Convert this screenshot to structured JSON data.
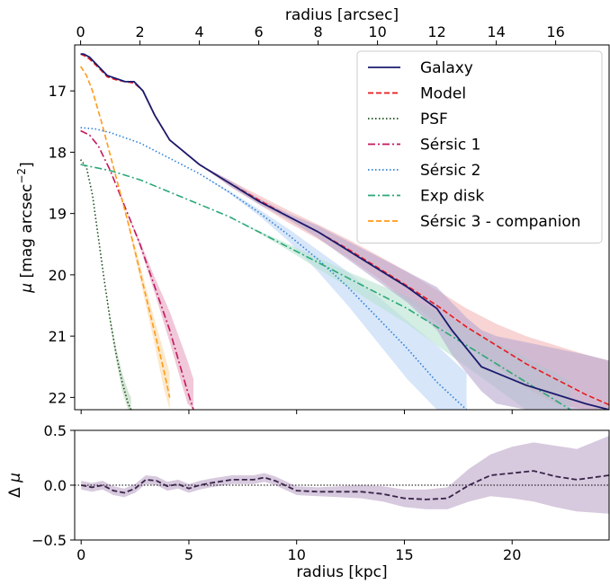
{
  "chart_data": [
    {
      "type": "line",
      "title": "",
      "xlabel": "radius [arcsec]",
      "xlabel_bottom": "radius [kpc]",
      "ylabel": "μ [mag arcsec⁻²]",
      "xlim_arcsec": [
        -0.2,
        17.8
      ],
      "xlim_kpc": [
        -0.3,
        24.5
      ],
      "ylim": [
        22.2,
        16.25
      ],
      "y_inverted": true,
      "top_ticks": [
        "0",
        "2",
        "4",
        "6",
        "8",
        "10",
        "12",
        "14",
        "16"
      ],
      "top_tick_values": [
        0,
        2,
        4,
        6,
        8,
        10,
        12,
        14,
        16
      ],
      "left_ticks": [
        "17",
        "18",
        "19",
        "20",
        "21",
        "22"
      ],
      "left_tick_values": [
        17,
        18,
        19,
        20,
        21,
        22
      ],
      "legend_position": "top-right",
      "series": [
        {
          "name": "Galaxy",
          "color": "#1b1b6e",
          "style": "solid",
          "x": [
            0,
            0.1,
            0.3,
            0.6,
            0.9,
            1.2,
            1.5,
            1.8,
            2.1,
            2.5,
            3.0,
            3.5,
            4.0,
            5.0,
            6.0,
            7.0,
            8.0,
            9.0,
            10.0,
            11.0,
            12.0,
            12.5,
            13.0,
            13.5,
            14.0,
            15.0,
            16.0,
            17.0,
            17.8
          ],
          "y": [
            16.4,
            16.4,
            16.45,
            16.6,
            16.75,
            16.8,
            16.85,
            16.85,
            17.0,
            17.4,
            17.8,
            18.0,
            18.2,
            18.5,
            18.8,
            19.05,
            19.3,
            19.6,
            19.9,
            20.2,
            20.55,
            20.9,
            21.2,
            21.5,
            21.6,
            21.8,
            21.95,
            22.1,
            22.2
          ],
          "band_lo": [
            16.4,
            16.4,
            16.45,
            16.6,
            16.75,
            16.8,
            16.85,
            16.85,
            17.0,
            17.4,
            17.8,
            18.0,
            18.2,
            18.45,
            18.75,
            19.0,
            19.2,
            19.45,
            19.7,
            19.95,
            20.2,
            20.45,
            20.7,
            20.9,
            21.0,
            21.1,
            21.2,
            21.3,
            21.4
          ],
          "band_hi": [
            16.4,
            16.4,
            16.45,
            16.6,
            16.75,
            16.8,
            16.85,
            16.85,
            17.0,
            17.4,
            17.8,
            18.0,
            18.2,
            18.55,
            18.85,
            19.1,
            19.4,
            19.75,
            20.1,
            20.45,
            20.9,
            21.3,
            21.6,
            21.9,
            22.1,
            22.2,
            22.2,
            22.2,
            22.2
          ],
          "band_color": "#b8a8cf"
        },
        {
          "name": "Model",
          "color": "#e8191c",
          "style": "dashed",
          "x": [
            0,
            0.1,
            0.3,
            0.6,
            0.9,
            1.2,
            1.5,
            1.8,
            2.1,
            2.5,
            3.0,
            3.5,
            4.0,
            5.0,
            6.0,
            7.0,
            8.0,
            9.0,
            10.0,
            11.0,
            12.0,
            13.0,
            14.0,
            15.0,
            16.0,
            17.0,
            17.8
          ],
          "y": [
            16.4,
            16.42,
            16.48,
            16.62,
            16.77,
            16.82,
            16.85,
            16.87,
            17.0,
            17.4,
            17.8,
            18.0,
            18.2,
            18.5,
            18.78,
            19.05,
            19.3,
            19.58,
            19.88,
            20.18,
            20.5,
            20.85,
            21.15,
            21.45,
            21.7,
            21.95,
            22.12
          ],
          "band_lo": [
            16.4,
            16.42,
            16.48,
            16.62,
            16.77,
            16.82,
            16.85,
            16.87,
            17.0,
            17.4,
            17.8,
            18.0,
            18.2,
            18.45,
            18.7,
            18.95,
            19.18,
            19.42,
            19.68,
            19.95,
            20.25,
            20.55,
            20.8,
            21.0,
            21.15,
            21.3,
            21.4
          ],
          "band_hi": [
            16.4,
            16.42,
            16.48,
            16.62,
            16.77,
            16.82,
            16.85,
            16.87,
            17.0,
            17.4,
            17.8,
            18.0,
            18.2,
            18.55,
            18.85,
            19.15,
            19.42,
            19.72,
            20.05,
            20.42,
            20.78,
            21.15,
            21.5,
            21.85,
            22.1,
            22.2,
            22.2
          ],
          "band_color": "#f4b8b8"
        },
        {
          "name": "PSF",
          "color": "#1a4d1a",
          "style": "dotted",
          "x": [
            0,
            0.2,
            0.4,
            0.6,
            0.8,
            1.0,
            1.2,
            1.4,
            1.6,
            1.7
          ],
          "y": [
            18.12,
            18.25,
            18.7,
            19.4,
            20.1,
            20.75,
            21.3,
            21.75,
            22.1,
            22.2
          ],
          "band_lo": [
            18.12,
            18.25,
            18.7,
            19.4,
            20.1,
            20.7,
            21.2,
            21.6,
            21.9,
            22.0
          ],
          "band_hi": [
            18.12,
            18.25,
            18.7,
            19.4,
            20.1,
            20.8,
            21.4,
            21.9,
            22.2,
            22.2
          ],
          "band_color": "#b9d3b9"
        },
        {
          "name": "Sérsic 1",
          "color": "#c2185b",
          "style": "dashdot",
          "x": [
            0,
            0.3,
            0.6,
            1.0,
            1.5,
            2.0,
            2.5,
            3.0,
            3.3,
            3.6,
            3.8
          ],
          "y": [
            17.65,
            17.72,
            17.9,
            18.3,
            18.9,
            19.5,
            20.2,
            20.9,
            21.4,
            21.9,
            22.2
          ],
          "band_lo": [
            17.65,
            17.72,
            17.9,
            18.3,
            18.9,
            19.45,
            20.05,
            20.6,
            21.0,
            21.4,
            21.7
          ],
          "band_hi": [
            17.65,
            17.72,
            17.9,
            18.3,
            18.9,
            19.55,
            20.3,
            21.1,
            21.6,
            22.1,
            22.2
          ],
          "band_color": "#e6a4bf"
        },
        {
          "name": "Sérsic 2",
          "color": "#2f7fd8",
          "style": "dotted",
          "x": [
            0,
            0.5,
            1.0,
            2.0,
            3.0,
            4.0,
            5.0,
            6.0,
            7.0,
            8.0,
            9.0,
            10.0,
            11.0,
            12.0,
            13.0
          ],
          "y": [
            17.6,
            17.62,
            17.68,
            17.85,
            18.1,
            18.35,
            18.65,
            18.98,
            19.35,
            19.75,
            20.2,
            20.7,
            21.2,
            21.75,
            22.2
          ],
          "band_lo": [
            17.6,
            17.62,
            17.68,
            17.85,
            18.1,
            18.35,
            18.63,
            18.93,
            19.25,
            19.6,
            19.95,
            20.35,
            20.75,
            21.15,
            21.6
          ],
          "band_hi": [
            17.6,
            17.62,
            17.68,
            17.85,
            18.1,
            18.35,
            18.67,
            19.03,
            19.45,
            19.95,
            20.5,
            21.1,
            21.7,
            22.2,
            22.2
          ],
          "band_color": "#bcd6f5"
        },
        {
          "name": "Exp disk",
          "color": "#2aa876",
          "style": "dashdot",
          "x": [
            0,
            1.0,
            2.0,
            3.0,
            4.0,
            5.0,
            6.0,
            7.0,
            8.0,
            9.0,
            10.0,
            11.0,
            12.0,
            13.0,
            14.0,
            15.0,
            16.0,
            16.5
          ],
          "y": [
            18.2,
            18.3,
            18.45,
            18.65,
            18.85,
            19.05,
            19.3,
            19.55,
            19.8,
            20.05,
            20.3,
            20.55,
            20.85,
            21.15,
            21.45,
            21.75,
            22.05,
            22.2
          ],
          "band_lo": [
            18.2,
            18.3,
            18.45,
            18.65,
            18.85,
            19.05,
            19.28,
            19.5,
            19.72,
            19.95,
            20.15,
            20.35,
            20.6,
            20.85,
            21.1,
            21.35,
            21.6,
            21.75
          ],
          "band_hi": [
            18.2,
            18.3,
            18.45,
            18.65,
            18.85,
            19.05,
            19.32,
            19.6,
            19.9,
            20.2,
            20.5,
            20.8,
            21.15,
            21.5,
            21.85,
            22.2,
            22.2,
            22.2
          ],
          "band_color": "#b8e3d0"
        },
        {
          "name": "Sérsic 3 - companion",
          "color": "#ff9a1a",
          "style": "dashed",
          "x": [
            0,
            0.2,
            0.4,
            0.7,
            1.0,
            1.3,
            1.6,
            1.9,
            2.2,
            2.5,
            2.8,
            3.0
          ],
          "y": [
            16.6,
            16.75,
            17.0,
            17.5,
            18.05,
            18.6,
            19.15,
            19.75,
            20.35,
            20.95,
            21.55,
            22.0
          ],
          "band_lo": [
            16.6,
            16.75,
            17.0,
            17.5,
            18.05,
            18.6,
            19.1,
            19.65,
            20.2,
            20.75,
            21.25,
            21.6
          ],
          "band_hi": [
            16.6,
            16.75,
            17.0,
            17.5,
            18.05,
            18.6,
            19.2,
            19.85,
            20.5,
            21.15,
            21.85,
            22.2
          ],
          "band_color": "#fbd8a7"
        }
      ]
    },
    {
      "type": "line",
      "title": "",
      "xlabel": "radius [kpc]",
      "ylabel": "Δ μ",
      "xlim": [
        -0.3,
        24.5
      ],
      "ylim": [
        -0.5,
        0.5
      ],
      "bottom_ticks": [
        "0",
        "5",
        "10",
        "15",
        "20"
      ],
      "bottom_tick_values": [
        0,
        5,
        10,
        15,
        20
      ],
      "left_ticks": [
        "0.5",
        "0.0",
        "−0.5"
      ],
      "left_tick_values": [
        0.5,
        0.0,
        -0.5
      ],
      "zero_line": true,
      "series": [
        {
          "name": "",
          "color": "#3a2448",
          "style": "dashed",
          "x": [
            0,
            0.5,
            1.0,
            1.5,
            2.0,
            2.5,
            3.0,
            3.5,
            4.0,
            4.5,
            5.0,
            5.5,
            6.0,
            7.0,
            8.0,
            8.5,
            9.0,
            10.0,
            11.0,
            12.0,
            13.0,
            14.0,
            15.0,
            16.0,
            17.0,
            18.0,
            19.0,
            20.0,
            21.0,
            22.0,
            23.0,
            24.5
          ],
          "y": [
            0.0,
            -0.02,
            0.0,
            -0.05,
            -0.07,
            -0.03,
            0.05,
            0.04,
            -0.01,
            0.01,
            -0.03,
            0.0,
            0.02,
            0.05,
            0.05,
            0.07,
            0.04,
            -0.05,
            -0.06,
            -0.06,
            -0.06,
            -0.08,
            -0.12,
            -0.13,
            -0.12,
            0.0,
            0.09,
            0.11,
            0.13,
            0.08,
            0.05,
            0.09
          ],
          "band_lo": [
            -0.04,
            -0.06,
            -0.04,
            -0.09,
            -0.11,
            -0.07,
            0.01,
            0.0,
            -0.05,
            -0.03,
            -0.07,
            -0.04,
            -0.02,
            0.01,
            0.01,
            0.03,
            0.0,
            -0.09,
            -0.1,
            -0.11,
            -0.12,
            -0.15,
            -0.2,
            -0.22,
            -0.22,
            -0.15,
            -0.1,
            -0.12,
            -0.15,
            -0.2,
            -0.24,
            -0.26
          ],
          "band_hi": [
            0.04,
            0.02,
            0.04,
            -0.01,
            -0.03,
            0.01,
            0.09,
            0.08,
            0.03,
            0.05,
            0.01,
            0.04,
            0.06,
            0.09,
            0.09,
            0.11,
            0.08,
            -0.01,
            -0.02,
            -0.01,
            0.0,
            -0.01,
            -0.04,
            -0.04,
            -0.02,
            0.15,
            0.28,
            0.35,
            0.39,
            0.36,
            0.33,
            0.45
          ],
          "band_color": "#cdbcd6"
        }
      ]
    }
  ]
}
